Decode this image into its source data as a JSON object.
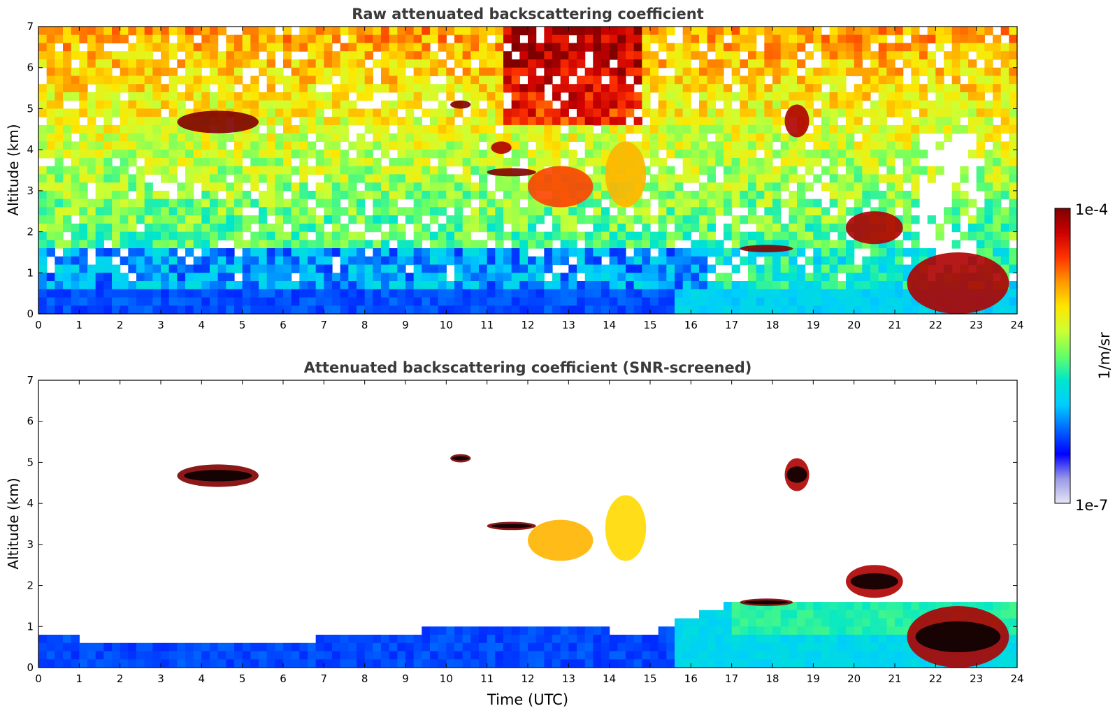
{
  "chart_data": [
    {
      "type": "heatmap",
      "title": "Raw attenuated backscattering coefficient",
      "xlabel": "",
      "ylabel": "Altitude (km)",
      "xlim": [
        0,
        24
      ],
      "ylim": [
        0,
        7
      ],
      "x_ticks": [
        "0",
        "1",
        "2",
        "3",
        "4",
        "5",
        "6",
        "7",
        "8",
        "9",
        "10",
        "11",
        "12",
        "13",
        "14",
        "15",
        "16",
        "17",
        "18",
        "19",
        "20",
        "21",
        "22",
        "23",
        "24"
      ],
      "y_ticks": [
        "0",
        "1",
        "2",
        "3",
        "4",
        "5",
        "6",
        "7"
      ],
      "features": [
        {
          "kind": "cloud",
          "x0": 3.4,
          "x1": 5.4,
          "y0": 4.4,
          "y1": 4.95,
          "level": 1.0
        },
        {
          "kind": "cloud",
          "x0": 10.1,
          "x1": 10.6,
          "y0": 5.0,
          "y1": 5.2,
          "level": 1.0
        },
        {
          "kind": "cloud",
          "x0": 11.0,
          "x1": 12.2,
          "y0": 3.35,
          "y1": 3.55,
          "level": 1.0
        },
        {
          "kind": "cloud",
          "x0": 11.1,
          "x1": 11.6,
          "y0": 3.9,
          "y1": 4.2,
          "level": 0.95
        },
        {
          "kind": "cloud",
          "x0": 12.0,
          "x1": 13.6,
          "y0": 2.6,
          "y1": 3.6,
          "level": 0.82
        },
        {
          "kind": "cloud",
          "x0": 13.9,
          "x1": 14.9,
          "y0": 2.6,
          "y1": 4.2,
          "level": 0.72
        },
        {
          "kind": "cloud",
          "x0": 18.3,
          "x1": 18.9,
          "y0": 4.3,
          "y1": 5.1,
          "level": 0.95
        },
        {
          "kind": "cloud",
          "x0": 17.2,
          "x1": 18.5,
          "y0": 1.5,
          "y1": 1.68,
          "level": 1.0
        },
        {
          "kind": "cloud",
          "x0": 19.8,
          "x1": 21.2,
          "y0": 1.7,
          "y1": 2.5,
          "level": 0.95
        },
        {
          "kind": "cloud",
          "x0": 21.3,
          "x1": 23.8,
          "y0": 0.0,
          "y1": 1.5,
          "level": 0.95
        }
      ]
    },
    {
      "type": "heatmap",
      "title": "Attenuated backscattering coefficient (SNR-screened)",
      "xlabel": "Time (UTC)",
      "ylabel": "Altitude (km)",
      "xlim": [
        0,
        24
      ],
      "ylim": [
        0,
        7
      ],
      "x_ticks": [
        "0",
        "1",
        "2",
        "3",
        "4",
        "5",
        "6",
        "7",
        "8",
        "9",
        "10",
        "11",
        "12",
        "13",
        "14",
        "15",
        "16",
        "17",
        "18",
        "19",
        "20",
        "21",
        "22",
        "23",
        "24"
      ],
      "y_ticks": [
        "0",
        "1",
        "2",
        "3",
        "4",
        "5",
        "6",
        "7"
      ],
      "features": [
        {
          "kind": "cloud",
          "x0": 3.4,
          "x1": 5.4,
          "y0": 4.4,
          "y1": 4.95,
          "level": 1.0
        },
        {
          "kind": "cloud",
          "x0": 10.1,
          "x1": 10.6,
          "y0": 5.0,
          "y1": 5.2,
          "level": 1.0
        },
        {
          "kind": "cloud",
          "x0": 11.0,
          "x1": 12.2,
          "y0": 3.35,
          "y1": 3.55,
          "level": 1.0
        },
        {
          "kind": "cloud",
          "x0": 12.0,
          "x1": 13.6,
          "y0": 2.6,
          "y1": 3.6,
          "level": 0.72
        },
        {
          "kind": "cloud",
          "x0": 13.9,
          "x1": 14.9,
          "y0": 2.6,
          "y1": 4.2,
          "level": 0.68
        },
        {
          "kind": "cloud",
          "x0": 18.3,
          "x1": 18.9,
          "y0": 4.3,
          "y1": 5.1,
          "level": 0.95
        },
        {
          "kind": "cloud",
          "x0": 17.2,
          "x1": 18.5,
          "y0": 1.5,
          "y1": 1.68,
          "level": 1.0
        },
        {
          "kind": "cloud",
          "x0": 19.8,
          "x1": 21.2,
          "y0": 1.7,
          "y1": 2.5,
          "level": 0.95
        },
        {
          "kind": "cloud",
          "x0": 21.3,
          "x1": 23.8,
          "y0": 0.0,
          "y1": 1.5,
          "level": 0.95
        }
      ]
    }
  ],
  "colorbar": {
    "label": "1/m/sr",
    "max_label": "1e-4",
    "min_label": "1e-7",
    "scale": "log",
    "colors": [
      "#e6e6f5",
      "#9999e6",
      "#0000ff",
      "#0066ff",
      "#00ccff",
      "#00e6cc",
      "#66ff66",
      "#ccff33",
      "#ffe600",
      "#ff9900",
      "#ff3300",
      "#cc0000",
      "#800000"
    ]
  }
}
